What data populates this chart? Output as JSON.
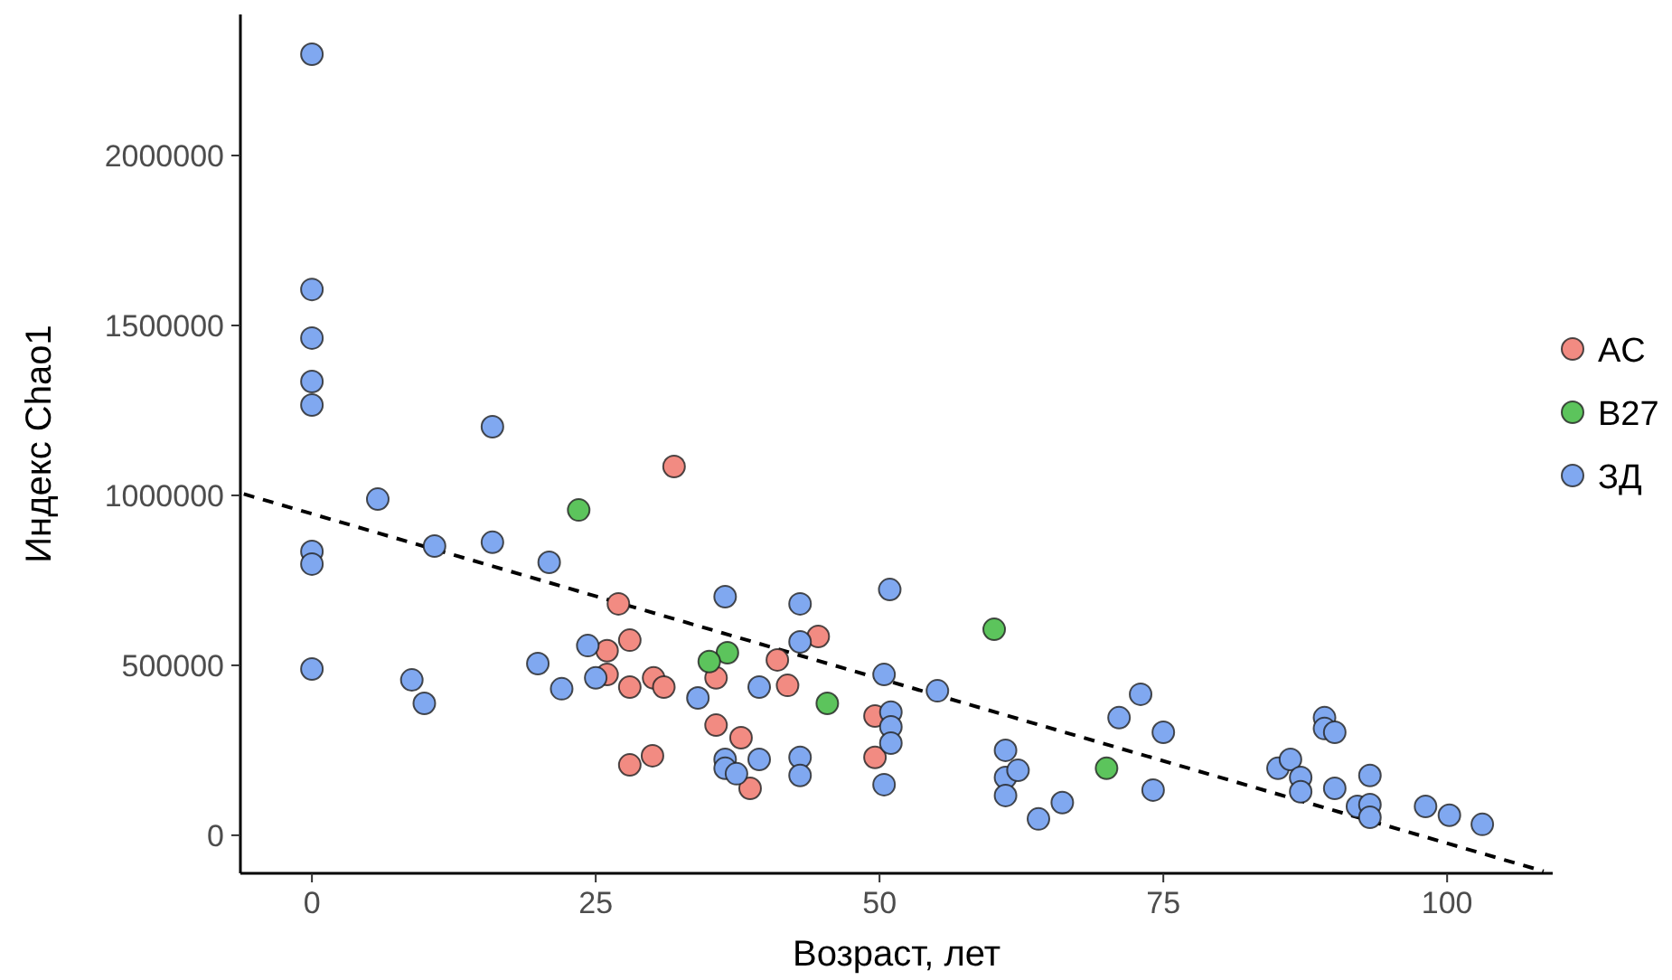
{
  "chart_data": {
    "type": "scatter",
    "xlabel": "Возраст, лет",
    "ylabel": "Индекс Chao1",
    "xlim": [
      -6.3,
      109.3
    ],
    "ylim": [
      -112000,
      2415000
    ],
    "xticks": [
      0,
      25,
      50,
      75,
      100
    ],
    "yticks": [
      0,
      500000,
      1000000,
      1500000,
      2000000
    ],
    "grid": false,
    "legend": "right",
    "marker": "circle",
    "series": [
      {
        "name": "AC",
        "color": "#f28b82",
        "x": [
          31.9,
          27,
          28,
          26,
          26,
          28,
          30.1,
          31,
          28,
          30,
          35.6,
          35.6,
          37.8,
          38.6,
          41,
          41.9,
          44.6,
          49.6,
          49.6
        ],
        "values": [
          1085000,
          681000,
          574000,
          543000,
          473000,
          436000,
          463000,
          436000,
          207000,
          234000,
          463000,
          324000,
          287000,
          138000,
          516000,
          441000,
          585000,
          351000,
          229000
        ]
      },
      {
        "name": "B27",
        "color": "#5cc45c",
        "x": [
          23.5,
          36.6,
          35,
          45.4,
          60.1,
          70
        ],
        "values": [
          957000,
          537000,
          511000,
          388000,
          606000,
          197000
        ]
      },
      {
        "name": "ЗД",
        "color": "#80a8f0",
        "x": [
          0,
          0,
          0,
          0,
          0,
          0,
          0,
          0,
          5.8,
          10.8,
          8.8,
          9.9,
          15.9,
          15.9,
          20.9,
          19.9,
          22,
          24.3,
          25,
          34,
          36.4,
          36.4,
          36.4,
          37.4,
          39.4,
          39.4,
          43,
          43,
          43,
          43,
          50.9,
          50.4,
          51,
          51,
          51,
          50.4,
          55.1,
          61.1,
          61.1,
          61.1,
          62.2,
          64,
          66.1,
          73,
          71.1,
          75,
          74.1,
          85.1,
          86.2,
          87.1,
          87.1,
          89.2,
          89.2,
          90.1,
          90.1,
          92.1,
          93.2,
          93.2,
          93.2,
          98.1,
          100.2,
          103.1
        ],
        "values": [
          2298000,
          1606000,
          1463000,
          1335000,
          1266000,
          835000,
          798000,
          489000,
          989000,
          851000,
          457000,
          388000,
          1202000,
          862000,
          803000,
          505000,
          431000,
          558000,
          463000,
          404000,
          702000,
          223000,
          197000,
          181000,
          223000,
          436000,
          681000,
          569000,
          229000,
          176000,
          723000,
          473000,
          362000,
          319000,
          271000,
          149000,
          425000,
          250000,
          170000,
          117000,
          191000,
          48000,
          96000,
          415000,
          346000,
          303000,
          133000,
          197000,
          223000,
          170000,
          128000,
          346000,
          314000,
          303000,
          138000,
          85000,
          176000,
          90000,
          53000,
          85000,
          59000,
          32000
        ]
      },
      {
        "type": "line",
        "line_style": "dashed",
        "color": "#000000",
        "marker": "none",
        "x": [
          -6,
          108.5
        ],
        "values": [
          1004000,
          -106000
        ]
      }
    ]
  }
}
